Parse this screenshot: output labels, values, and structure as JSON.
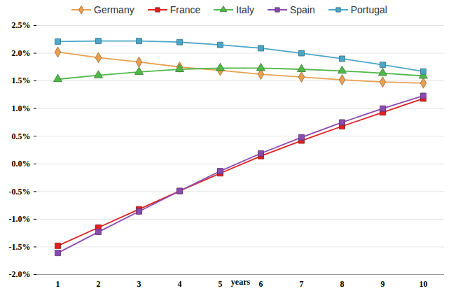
{
  "chart_data": {
    "type": "line",
    "x_label": "years",
    "categories": [
      1,
      2,
      3,
      4,
      5,
      6,
      7,
      8,
      9,
      10
    ],
    "series": [
      {
        "name": "Germany",
        "color": "#E8A050",
        "marker": "diamond",
        "values": [
          2.02,
          1.92,
          1.84,
          1.75,
          1.69,
          1.62,
          1.57,
          1.52,
          1.48,
          1.46
        ]
      },
      {
        "name": "France",
        "color": "#E02020",
        "marker": "square",
        "values": [
          -1.48,
          -1.15,
          -0.82,
          -0.49,
          -0.17,
          0.14,
          0.42,
          0.68,
          0.93,
          1.18
        ]
      },
      {
        "name": "Italy",
        "color": "#50B848",
        "marker": "triangle",
        "values": [
          1.53,
          1.6,
          1.66,
          1.71,
          1.73,
          1.73,
          1.71,
          1.68,
          1.64,
          1.59
        ]
      },
      {
        "name": "Spain",
        "color": "#8A4BB0",
        "marker": "square",
        "values": [
          -1.61,
          -1.23,
          -0.86,
          -0.49,
          -0.13,
          0.19,
          0.48,
          0.75,
          1.0,
          1.23
        ]
      },
      {
        "name": "Portugal",
        "color": "#4BA6C8",
        "marker": "square",
        "values": [
          2.21,
          2.22,
          2.22,
          2.2,
          2.15,
          2.09,
          2.0,
          1.9,
          1.79,
          1.67
        ]
      }
    ],
    "ylim": [
      -2.0,
      2.5
    ],
    "yticks": [
      {
        "value": -2.0,
        "label": "-2.0%"
      },
      {
        "value": -1.5,
        "label": "-1.5%"
      },
      {
        "value": -1.0,
        "label": "-1.0%"
      },
      {
        "value": -0.5,
        "label": "-0.5%"
      },
      {
        "value": 0.0,
        "label": "0.0%"
      },
      {
        "value": 0.5,
        "label": "0.5%"
      },
      {
        "value": 1.0,
        "label": "1.0%"
      },
      {
        "value": 1.5,
        "label": "1.5%"
      },
      {
        "value": 2.0,
        "label": "2.0%"
      },
      {
        "value": 2.5,
        "label": "2.5%"
      }
    ],
    "grid": true,
    "legend": "top"
  }
}
